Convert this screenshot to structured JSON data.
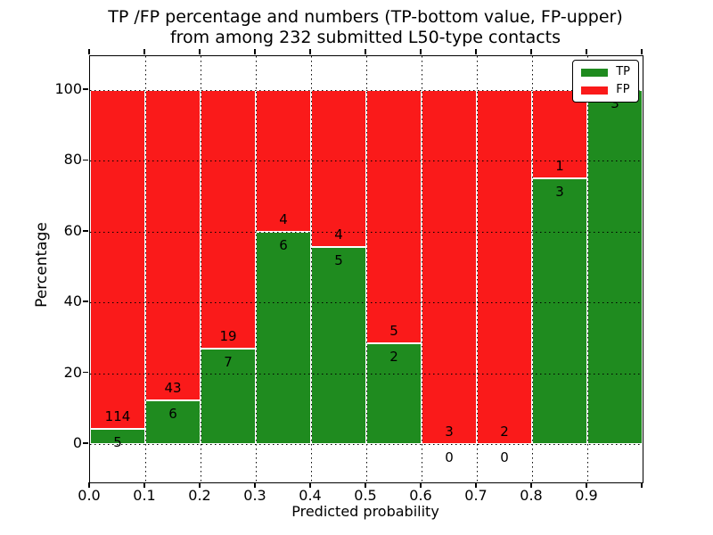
{
  "title": {
    "line1": "TP /FP percentage and numbers (TP-bottom value, FP-upper)",
    "line2": "from among 232 submitted L50-type contacts"
  },
  "axes": {
    "xlabel": "Predicted probability",
    "ylabel": "Percentage",
    "x_tick_labels": [
      "0.0",
      "0.1",
      "0.2",
      "0.3",
      "0.4",
      "0.5",
      "0.6",
      "0.7",
      "0.8",
      "0.9"
    ],
    "y_tick_labels": [
      "0",
      "20",
      "40",
      "60",
      "80",
      "100"
    ]
  },
  "legend": {
    "items": [
      {
        "label": "TP",
        "color": "#1f8b1f"
      },
      {
        "label": "FP",
        "color": "#fa1a1a"
      }
    ]
  },
  "colors": {
    "tp": "#1f8b1f",
    "fp": "#fa1a1a",
    "bar_edge": "#ffffff",
    "grid": "#000000",
    "background": "#ffffff"
  },
  "chart_data": {
    "type": "bar",
    "stacked": true,
    "normalized": "percent",
    "title": "TP /FP percentage and numbers (TP-bottom value, FP-upper) from among 232 submitted L50-type contacts",
    "xlabel": "Predicted probability",
    "ylabel": "Percentage",
    "xlim": [
      0.0,
      1.0
    ],
    "ylim": [
      -11,
      110
    ],
    "grid": true,
    "legend_position": "upper right",
    "bin_width": 0.1,
    "bin_edges": [
      0.0,
      0.1,
      0.2,
      0.3,
      0.4,
      0.5,
      0.6,
      0.7,
      0.8,
      0.9,
      1.0
    ],
    "series": [
      {
        "name": "TP",
        "values": [
          5,
          6,
          7,
          6,
          5,
          2,
          0,
          0,
          3,
          3
        ]
      },
      {
        "name": "FP",
        "values": [
          114,
          43,
          19,
          4,
          4,
          5,
          3,
          2,
          1,
          0
        ]
      }
    ],
    "tp_percent_per_bin": [
      4.2,
      12.2,
      26.9,
      60.0,
      55.6,
      28.6,
      0.0,
      0.0,
      75.0,
      100.0
    ],
    "total_contacts": 232
  }
}
